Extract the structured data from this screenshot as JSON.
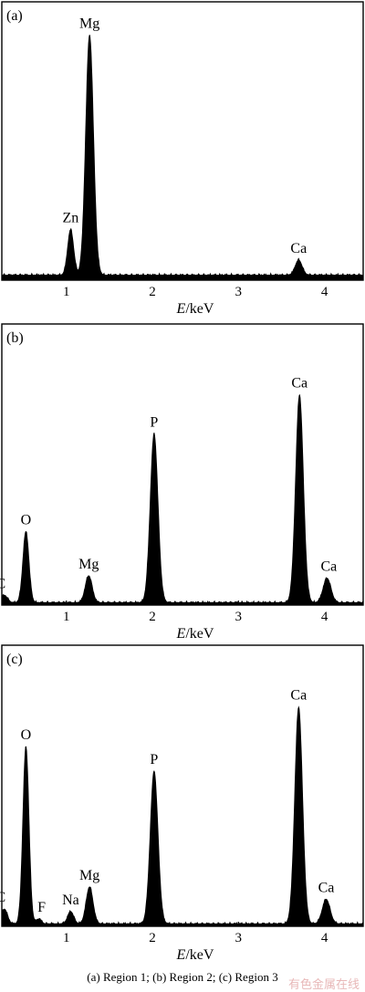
{
  "figure_caption": "(a) Region 1; (b) Region 2; (c) Region 3",
  "watermark": "有色金属在线",
  "chart_data": [
    {
      "type": "line",
      "panel_label": "(a)",
      "xlabel_italic": "E",
      "xlabel_rest": "/keV",
      "ylabel": "",
      "xlim": [
        0.25,
        4.45
      ],
      "ylim": [
        0,
        100
      ],
      "xticks": [
        1,
        2,
        3,
        4
      ],
      "grid": false,
      "baseline": 2,
      "peaks": [
        {
          "label": "Zn",
          "x": 1.05,
          "height": 18,
          "width": 0.035
        },
        {
          "label": "Mg",
          "x": 1.27,
          "height": 95,
          "width": 0.045
        },
        {
          "label": "Ca",
          "x": 3.7,
          "height": 6,
          "width": 0.04
        }
      ]
    },
    {
      "type": "line",
      "panel_label": "(b)",
      "xlabel_italic": "E",
      "xlabel_rest": "/keV",
      "ylabel": "",
      "xlim": [
        0.25,
        4.45
      ],
      "ylim": [
        0,
        100
      ],
      "xticks": [
        1,
        2,
        3,
        4
      ],
      "grid": false,
      "baseline": 1,
      "peaks": [
        {
          "label": "C",
          "x": 0.28,
          "height": 3,
          "width": 0.035
        },
        {
          "label": "O",
          "x": 0.53,
          "height": 29,
          "width": 0.035
        },
        {
          "label": "Mg",
          "x": 1.26,
          "height": 11,
          "width": 0.04
        },
        {
          "label": "P",
          "x": 2.02,
          "height": 69,
          "width": 0.045
        },
        {
          "label": "Ca",
          "x": 3.71,
          "height": 85,
          "width": 0.045
        },
        {
          "label": "Ca",
          "x": 4.03,
          "height": 10,
          "width": 0.045
        }
      ]
    },
    {
      "type": "line",
      "panel_label": "(c)",
      "xlabel_italic": "E",
      "xlabel_rest": "/keV",
      "ylabel": "",
      "xlim": [
        0.25,
        4.45
      ],
      "ylim": [
        0,
        100
      ],
      "xticks": [
        1,
        2,
        3,
        4
      ],
      "grid": false,
      "baseline": 1,
      "peaks": [
        {
          "label": "C",
          "x": 0.28,
          "height": 6,
          "width": 0.035
        },
        {
          "label": "O",
          "x": 0.53,
          "height": 72,
          "width": 0.035
        },
        {
          "label": "F",
          "x": 0.68,
          "height": 2,
          "width": 0.03
        },
        {
          "label": "Na",
          "x": 1.05,
          "height": 5,
          "width": 0.035
        },
        {
          "label": "Mg",
          "x": 1.27,
          "height": 15,
          "width": 0.04
        },
        {
          "label": "P",
          "x": 2.02,
          "height": 62,
          "width": 0.045
        },
        {
          "label": "Ca",
          "x": 3.7,
          "height": 88,
          "width": 0.045
        },
        {
          "label": "Ca",
          "x": 4.02,
          "height": 10,
          "width": 0.045
        }
      ]
    }
  ]
}
